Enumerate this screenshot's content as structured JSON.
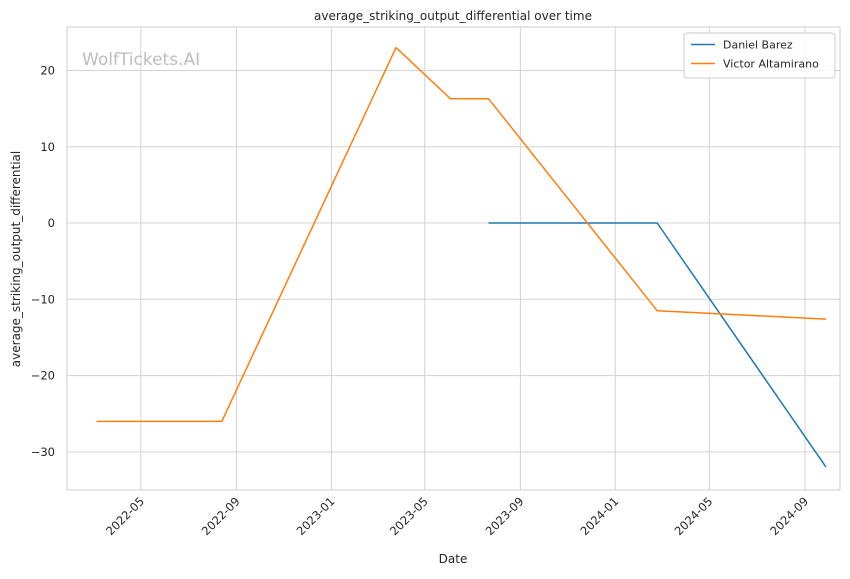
{
  "chart_data": {
    "type": "line",
    "title": "average_striking_output_differential over time",
    "xlabel": "Date",
    "ylabel": "average_striking_output_differential",
    "x_ticks": [
      "2022-05",
      "2022-09",
      "2023-01",
      "2023-05",
      "2023-09",
      "2024-01",
      "2024-05",
      "2024-09"
    ],
    "y_ticks": [
      20,
      10,
      0,
      -10,
      -20,
      -30
    ],
    "xlim": [
      "2022-01-26",
      "2024-10-16"
    ],
    "ylim": [
      -35,
      25.7
    ],
    "grid": true,
    "legend_position": "top-right",
    "watermark": "WolfTickets.AI",
    "series": [
      {
        "name": "Daniel Barez",
        "color": "#1f77b4",
        "points": [
          {
            "x": "2023-07-22",
            "y": 0
          },
          {
            "x": "2024-02-24",
            "y": 0
          },
          {
            "x": "2024-09-28",
            "y": -32
          }
        ]
      },
      {
        "name": "Victor Altamirano",
        "color": "#ff7f0e",
        "points": [
          {
            "x": "2022-03-05",
            "y": -26
          },
          {
            "x": "2022-08-13",
            "y": -26
          },
          {
            "x": "2023-03-25",
            "y": 23
          },
          {
            "x": "2023-06-03",
            "y": 16.3
          },
          {
            "x": "2023-07-22",
            "y": 16.3
          },
          {
            "x": "2024-02-24",
            "y": -11.5
          },
          {
            "x": "2024-09-28",
            "y": -12.6
          }
        ]
      }
    ]
  }
}
